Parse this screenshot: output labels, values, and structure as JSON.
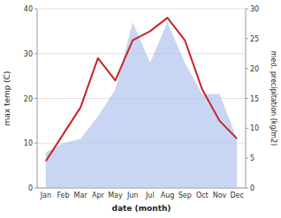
{
  "chart_data": {
    "type": "line",
    "x_label": "date (month)",
    "y_label": "max temp (C)",
    "y2_label": "med. precipitation (kg/m2)",
    "categories": [
      "Jan",
      "Feb",
      "Mar",
      "Apr",
      "May",
      "Jun",
      "Jul",
      "Aug",
      "Sep",
      "Oct",
      "Nov",
      "Dec"
    ],
    "series": [
      {
        "type": "area",
        "color": "#b0c4ee",
        "values": [
          8,
          10,
          11,
          16,
          22,
          37,
          28,
          37,
          28,
          21,
          21,
          11
        ]
      },
      {
        "type": "line",
        "color": "#cc2222",
        "values": [
          6,
          12,
          18,
          29,
          24,
          33,
          35,
          38,
          33,
          22,
          15,
          11
        ]
      }
    ],
    "ylim": [
      0,
      40
    ],
    "yticks": [
      0,
      10,
      20,
      30,
      40
    ],
    "y2lim": [
      0,
      30
    ],
    "y2ticks": [
      0,
      5,
      10,
      15,
      20,
      25,
      30
    ],
    "grid": true
  }
}
